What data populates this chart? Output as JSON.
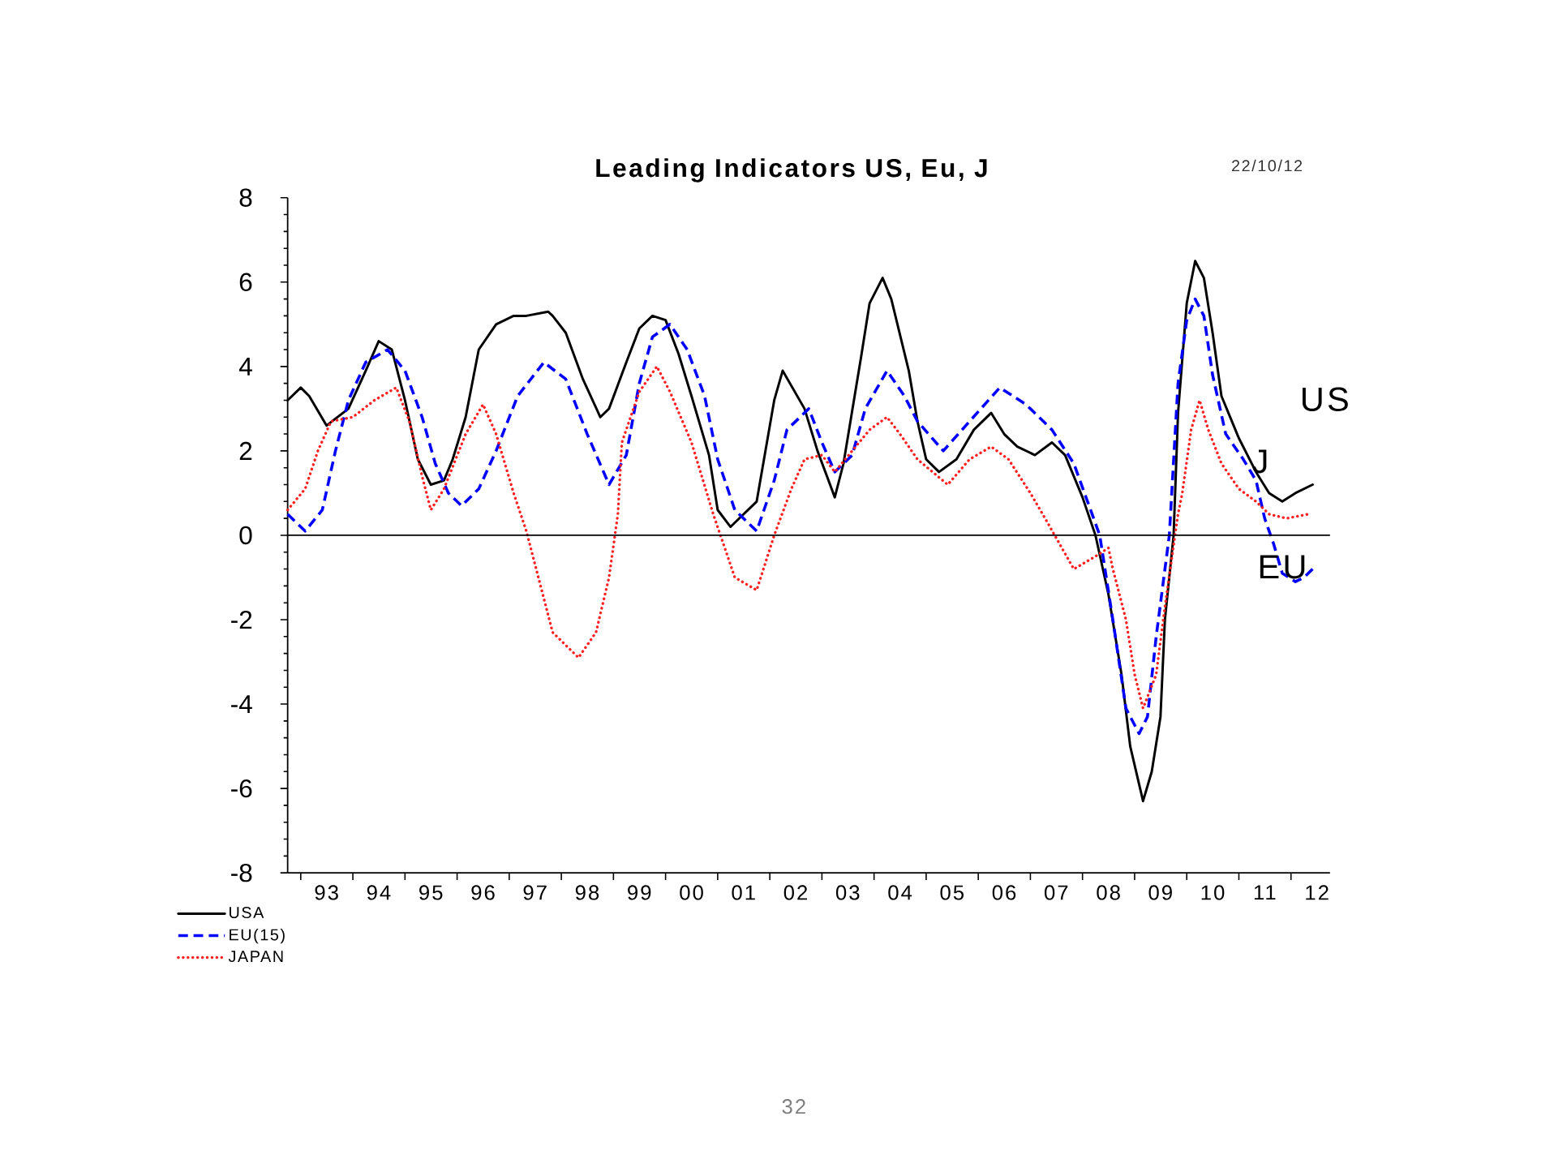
{
  "chart_data": {
    "type": "line",
    "title": "Leading Indicators US, Eu, J",
    "subtitle": "22/10/12",
    "xlim": [
      "1992-10",
      "2012-10"
    ],
    "xticks": [
      {
        "value": "1993-01",
        "label": null
      },
      {
        "value": "1993-07",
        "label": "93"
      },
      {
        "value": "1994-01",
        "label": null
      },
      {
        "value": "1994-07",
        "label": "94"
      },
      {
        "value": "1995-01",
        "label": null
      },
      {
        "value": "1995-07",
        "label": "95"
      },
      {
        "value": "1996-01",
        "label": null
      },
      {
        "value": "1996-07",
        "label": "96"
      },
      {
        "value": "1997-01",
        "label": null
      },
      {
        "value": "1997-07",
        "label": "97"
      },
      {
        "value": "1998-01",
        "label": null
      },
      {
        "value": "1998-07",
        "label": "98"
      },
      {
        "value": "1999-01",
        "label": null
      },
      {
        "value": "1999-07",
        "label": "99"
      },
      {
        "value": "2000-01",
        "label": null
      },
      {
        "value": "2000-07",
        "label": "00"
      },
      {
        "value": "2001-01",
        "label": null
      },
      {
        "value": "2001-07",
        "label": "01"
      },
      {
        "value": "2002-01",
        "label": null
      },
      {
        "value": "2002-07",
        "label": "02"
      },
      {
        "value": "2003-01",
        "label": null
      },
      {
        "value": "2003-07",
        "label": "03"
      },
      {
        "value": "2004-01",
        "label": null
      },
      {
        "value": "2004-07",
        "label": "04"
      },
      {
        "value": "2005-01",
        "label": null
      },
      {
        "value": "2005-07",
        "label": "05"
      },
      {
        "value": "2006-01",
        "label": null
      },
      {
        "value": "2006-07",
        "label": "06"
      },
      {
        "value": "2007-01",
        "label": null
      },
      {
        "value": "2007-07",
        "label": "07"
      },
      {
        "value": "2008-01",
        "label": null
      },
      {
        "value": "2008-07",
        "label": "08"
      },
      {
        "value": "2009-01",
        "label": null
      },
      {
        "value": "2009-07",
        "label": "09"
      },
      {
        "value": "2010-01",
        "label": null
      },
      {
        "value": "2010-07",
        "label": "10"
      },
      {
        "value": "2011-01",
        "label": null
      },
      {
        "value": "2011-07",
        "label": "11"
      },
      {
        "value": "2012-01",
        "label": null
      },
      {
        "value": "2012-07",
        "label": "12"
      }
    ],
    "ylim": [
      -8,
      8
    ],
    "yticks": [
      -8,
      -6,
      -4,
      -2,
      0,
      2,
      4,
      6,
      8
    ],
    "legend": "bottom left",
    "series": [
      {
        "name": "USA",
        "color": "#000000",
        "line_style": "solid",
        "x": [
          "1992-10",
          "1993-01",
          "1993-03",
          "1993-07",
          "1993-12",
          "1994-04",
          "1994-07",
          "1994-10",
          "1995-01",
          "1995-04",
          "1995-07",
          "1995-10",
          "1995-12",
          "1996-03",
          "1996-06",
          "1996-10",
          "1997-02",
          "1997-05",
          "1997-10",
          "1997-11",
          "1998-02",
          "1998-06",
          "1998-10",
          "1998-12",
          "1999-04",
          "1999-07",
          "1999-10",
          "2000-01",
          "2000-04",
          "2000-07",
          "2000-11",
          "2001-01",
          "2001-04",
          "2001-10",
          "2002-02",
          "2002-04",
          "2002-09",
          "2002-12",
          "2003-04",
          "2003-06",
          "2003-10",
          "2003-12",
          "2004-03",
          "2004-05",
          "2004-09",
          "2004-11",
          "2005-01",
          "2005-04",
          "2005-08",
          "2005-12",
          "2006-04",
          "2006-07",
          "2006-10",
          "2007-02",
          "2007-06",
          "2007-09",
          "2008-01",
          "2008-04",
          "2008-07",
          "2008-10",
          "2008-12",
          "2009-03",
          "2009-05",
          "2009-07",
          "2009-08",
          "2009-10",
          "2009-11",
          "2010-01",
          "2010-03",
          "2010-05",
          "2010-07",
          "2010-09",
          "2011-01",
          "2011-05",
          "2011-08",
          "2011-11",
          "2012-02",
          "2012-06"
        ],
        "values": [
          3.2,
          3.5,
          3.3,
          2.6,
          3.0,
          3.9,
          4.6,
          4.4,
          3.2,
          1.8,
          1.2,
          1.3,
          1.8,
          2.8,
          4.4,
          5.0,
          5.2,
          5.2,
          5.3,
          5.2,
          4.8,
          3.7,
          2.8,
          3.0,
          4.1,
          4.9,
          5.2,
          5.1,
          4.3,
          3.3,
          1.9,
          0.6,
          0.2,
          0.8,
          3.2,
          3.9,
          3.0,
          2.0,
          0.9,
          1.7,
          4.2,
          5.5,
          6.1,
          5.6,
          3.9,
          2.7,
          1.8,
          1.5,
          1.8,
          2.5,
          2.9,
          2.4,
          2.1,
          1.9,
          2.2,
          1.9,
          0.9,
          0.0,
          -1.4,
          -3.3,
          -5.0,
          -6.3,
          -5.6,
          -4.3,
          -2.0,
          0.0,
          2.9,
          5.5,
          6.5,
          6.1,
          4.8,
          3.3,
          2.3,
          1.5,
          1.0,
          0.8,
          1.0,
          1.2
        ]
      },
      {
        "name": "EU(15)",
        "color": "#0000ff",
        "line_style": "dashed",
        "x": [
          "1992-10",
          "1993-02",
          "1993-06",
          "1993-09",
          "1993-12",
          "1994-04",
          "1994-09",
          "1995-01",
          "1995-05",
          "1995-08",
          "1995-11",
          "1996-02",
          "1996-06",
          "1996-10",
          "1997-03",
          "1997-09",
          "1998-02",
          "1998-07",
          "1998-12",
          "1999-04",
          "1999-07",
          "1999-10",
          "2000-02",
          "2000-06",
          "2000-10",
          "2001-01",
          "2001-05",
          "2001-10",
          "2002-02",
          "2002-05",
          "2002-10",
          "2003-01",
          "2003-04",
          "2003-08",
          "2003-11",
          "2004-04",
          "2004-08",
          "2004-11",
          "2005-05",
          "2005-11",
          "2006-06",
          "2006-12",
          "2007-06",
          "2007-11",
          "2008-05",
          "2008-08",
          "2008-11",
          "2009-02",
          "2009-04",
          "2009-06",
          "2009-09",
          "2009-11",
          "2010-01",
          "2010-03",
          "2010-05",
          "2010-07",
          "2010-10",
          "2011-02",
          "2011-05",
          "2011-07",
          "2011-09",
          "2011-11",
          "2012-02",
          "2012-04",
          "2012-06"
        ],
        "values": [
          0.5,
          0.1,
          0.6,
          2.0,
          3.2,
          4.1,
          4.4,
          3.9,
          2.8,
          1.7,
          1.0,
          0.7,
          1.1,
          2.0,
          3.3,
          4.1,
          3.7,
          2.4,
          1.2,
          1.9,
          3.6,
          4.7,
          5.0,
          4.4,
          3.3,
          1.8,
          0.6,
          0.1,
          1.3,
          2.5,
          3.0,
          2.2,
          1.5,
          1.9,
          3.0,
          3.9,
          3.3,
          2.7,
          2.0,
          2.7,
          3.5,
          3.1,
          2.5,
          1.7,
          0.0,
          -2.0,
          -4.1,
          -4.7,
          -4.3,
          -2.4,
          0.0,
          3.6,
          5.1,
          5.6,
          5.2,
          3.8,
          2.4,
          1.8,
          1.3,
          0.4,
          -0.2,
          -0.9,
          -1.1,
          -1.0,
          -0.8
        ]
      },
      {
        "name": "JAPAN",
        "color": "#ff2020",
        "line_style": "dotted",
        "x": [
          "1992-10",
          "1993-02",
          "1993-05",
          "1993-08",
          "1994-01",
          "1994-06",
          "1994-11",
          "1995-02",
          "1995-05",
          "1995-07",
          "1995-10",
          "1996-03",
          "1996-07",
          "1996-10",
          "1997-02",
          "1997-05",
          "1997-08",
          "1997-11",
          "1998-05",
          "1998-09",
          "1998-12",
          "1999-02",
          "1999-03",
          "1999-07",
          "1999-11",
          "2000-02",
          "2000-07",
          "2000-12",
          "2001-05",
          "2001-10",
          "2002-02",
          "2002-06",
          "2002-09",
          "2003-01",
          "2003-04",
          "2003-08",
          "2003-12",
          "2004-04",
          "2004-07",
          "2004-11",
          "2005-06",
          "2005-11",
          "2006-04",
          "2006-08",
          "2007-01",
          "2007-05",
          "2007-11",
          "2008-04",
          "2008-07",
          "2008-08",
          "2008-11",
          "2009-01",
          "2009-03",
          "2009-06",
          "2009-08",
          "2009-11",
          "2009-12",
          "2010-02",
          "2010-04",
          "2010-06",
          "2010-09",
          "2011-01",
          "2011-05",
          "2011-08",
          "2011-12",
          "2012-05"
        ],
        "values": [
          0.6,
          1.1,
          2.0,
          2.7,
          2.8,
          3.2,
          3.5,
          2.7,
          1.4,
          0.6,
          1.1,
          2.4,
          3.1,
          2.4,
          1.0,
          0.1,
          -1.1,
          -2.3,
          -2.9,
          -2.3,
          -1.0,
          0.5,
          2.2,
          3.4,
          4.0,
          3.4,
          2.2,
          0.5,
          -1.0,
          -1.3,
          0.0,
          1.1,
          1.8,
          1.9,
          1.5,
          2.0,
          2.5,
          2.8,
          2.4,
          1.8,
          1.2,
          1.8,
          2.1,
          1.8,
          1.0,
          0.3,
          -0.8,
          -0.5,
          -0.3,
          -0.8,
          -2.0,
          -3.3,
          -4.1,
          -3.3,
          -1.7,
          0.5,
          1.0,
          2.5,
          3.2,
          2.5,
          1.7,
          1.1,
          0.8,
          0.5,
          0.4,
          0.5
        ]
      }
    ],
    "ref_lines": [
      {
        "axis": "y",
        "value": 0,
        "color": "#000000"
      }
    ],
    "annotations": [
      "US",
      {
        "text": "J",
        "x": "2011-06",
        "y": 1.75
      },
      {
        "text": "EU",
        "x": "2011-11",
        "y": -0.75
      },
      "32"
    ]
  }
}
